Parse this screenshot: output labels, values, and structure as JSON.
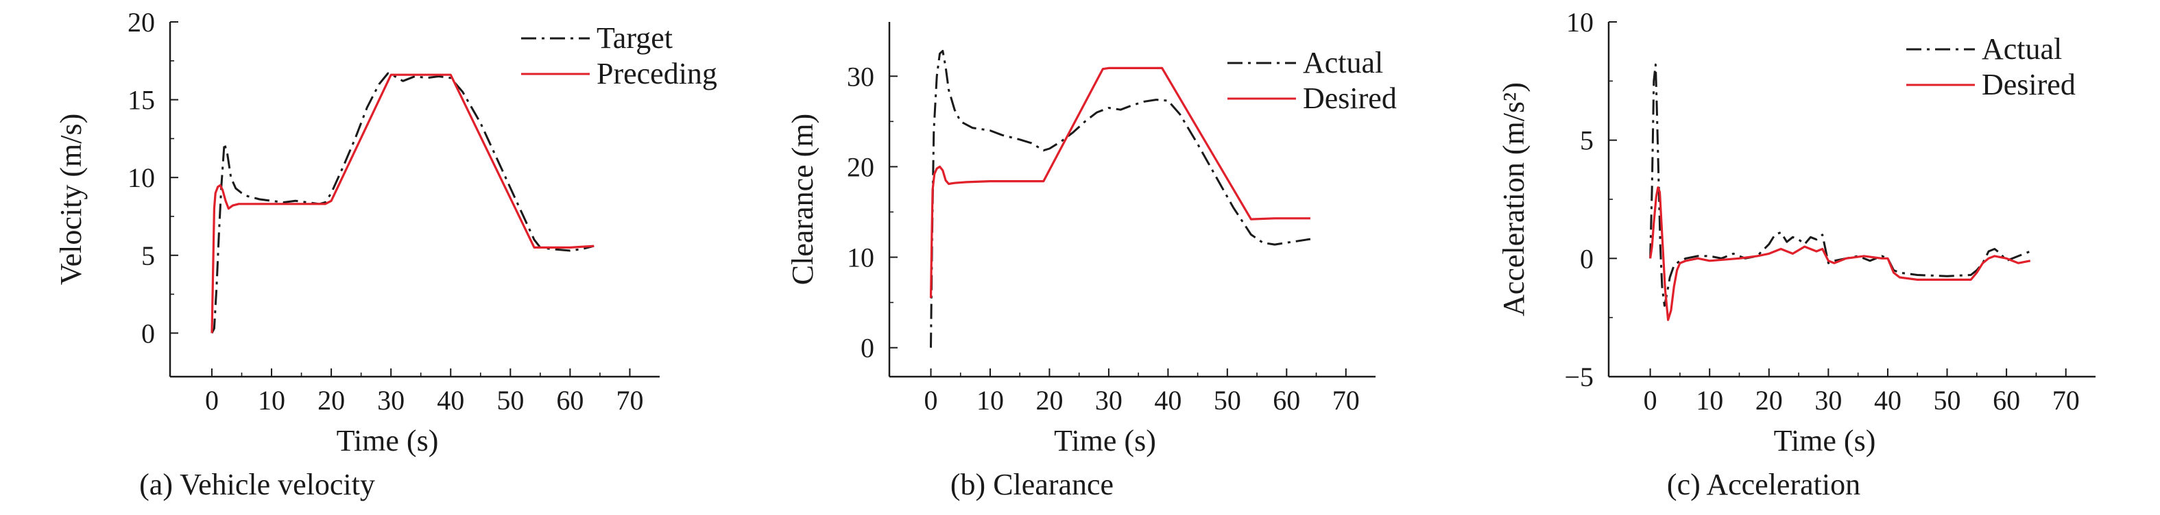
{
  "figure": {
    "colors": {
      "target": "#1a1a1a",
      "actual": "#1a1a1a",
      "preceding": "#e0202a",
      "desired": "#e0202a"
    }
  },
  "chart_data": [
    {
      "type": "line",
      "caption": "(a) Vehicle velocity",
      "xlabel": "Time (s)",
      "ylabel": "Velocity (m/s)",
      "xlim": [
        -7,
        75
      ],
      "ylim": [
        -2.8,
        20
      ],
      "xticks": [
        0,
        10,
        20,
        30,
        40,
        50,
        60,
        70
      ],
      "yticks": [
        0,
        5,
        10,
        15,
        20
      ],
      "xtick_labels": [
        "0",
        "10",
        "20",
        "30",
        "40",
        "50",
        "60",
        "70"
      ],
      "ytick_labels": [
        "0",
        "5",
        "10",
        "15",
        "20"
      ],
      "legend_position": "top-right",
      "series": [
        {
          "name": "Target",
          "style": "dashdot",
          "color": "#1a1a1a",
          "x": [
            0,
            0.4,
            0.8,
            1.2,
            1.6,
            2.1,
            2.6,
            3.2,
            4,
            5,
            6,
            8,
            10,
            12,
            14,
            16,
            18,
            19,
            20,
            22,
            24,
            26,
            28,
            29.5,
            30.2,
            32,
            34,
            36,
            38,
            40,
            42,
            45,
            48,
            51,
            54,
            55,
            57,
            60,
            62,
            64
          ],
          "y": [
            0,
            0.3,
            3,
            6.5,
            9.5,
            12.2,
            11.5,
            10,
            9.3,
            9,
            8.8,
            8.6,
            8.5,
            8.4,
            8.5,
            8.4,
            8.3,
            8.4,
            9,
            10.7,
            12.5,
            14.5,
            16,
            16.7,
            16.6,
            16.2,
            16.5,
            16.4,
            16.5,
            16.4,
            15.5,
            13.5,
            11,
            8.5,
            6,
            5.5,
            5.4,
            5.3,
            5.4,
            5.6
          ]
        },
        {
          "name": "Preceding",
          "style": "solid",
          "color": "#e0202a",
          "x": [
            0,
            0.2,
            0.4,
            0.6,
            1,
            1.4,
            1.8,
            2.3,
            2.8,
            3.5,
            4.5,
            6,
            10,
            15,
            19,
            20,
            30,
            40,
            54,
            55,
            60,
            64
          ],
          "y": [
            0,
            4,
            8,
            9,
            9.4,
            9.5,
            9.2,
            8.5,
            8,
            8.2,
            8.3,
            8.3,
            8.3,
            8.3,
            8.3,
            8.5,
            16.6,
            16.6,
            5.5,
            5.5,
            5.5,
            5.6
          ]
        }
      ]
    },
    {
      "type": "line",
      "caption": "(b) Clearance",
      "xlabel": "Time (s)",
      "ylabel": "Clearance (m)",
      "xlim": [
        -7,
        75
      ],
      "ylim": [
        -3.2,
        36
      ],
      "xticks": [
        0,
        10,
        20,
        30,
        40,
        50,
        60,
        70
      ],
      "yticks": [
        0,
        10,
        20,
        30
      ],
      "xtick_labels": [
        "0",
        "10",
        "20",
        "30",
        "40",
        "50",
        "60",
        "70"
      ],
      "ytick_labels": [
        "0",
        "10",
        "20",
        "30"
      ],
      "legend_position": "top-right",
      "series": [
        {
          "name": "Actual",
          "style": "dashdot",
          "color": "#1a1a1a",
          "x": [
            0,
            0.2,
            0.5,
            1,
            1.5,
            2,
            2.5,
            3,
            4,
            5,
            7,
            10,
            12,
            15,
            17,
            18,
            19,
            20,
            22,
            24,
            26,
            28,
            30,
            32,
            34,
            36,
            38,
            40,
            42,
            45,
            48,
            51,
            54,
            56,
            58,
            60,
            62,
            64
          ],
          "y": [
            0,
            12,
            24,
            30,
            32.5,
            32.8,
            31,
            28.5,
            26.3,
            25,
            24.3,
            24,
            23.5,
            23,
            22.6,
            22.2,
            21.8,
            22,
            22.8,
            23.8,
            25,
            26,
            26.5,
            26.3,
            26.8,
            27.2,
            27.4,
            27.3,
            25.8,
            22.5,
            19,
            15.5,
            12.5,
            11.6,
            11.4,
            11.6,
            11.8,
            12
          ]
        },
        {
          "name": "Desired",
          "style": "solid",
          "color": "#e0202a",
          "x": [
            0,
            0.15,
            0.3,
            0.6,
            1,
            1.5,
            2,
            2.5,
            3,
            4,
            6,
            10,
            15,
            19,
            29,
            30,
            39,
            54,
            58,
            62,
            64
          ],
          "y": [
            5.5,
            12,
            17.5,
            19.2,
            19.8,
            20,
            19.6,
            18.5,
            18.1,
            18.2,
            18.3,
            18.4,
            18.4,
            18.4,
            30.8,
            30.9,
            30.9,
            14.2,
            14.3,
            14.3,
            14.3
          ]
        }
      ]
    },
    {
      "type": "line",
      "caption": "(c) Acceleration",
      "xlabel": "Time (s)",
      "ylabel": "Acceleration (m/s²)",
      "xlim": [
        -7,
        75
      ],
      "ylim": [
        -5,
        10
      ],
      "xticks": [
        0,
        10,
        20,
        30,
        40,
        50,
        60,
        70
      ],
      "yticks": [
        -5,
        0,
        5,
        10
      ],
      "xtick_labels": [
        "0",
        "10",
        "20",
        "30",
        "40",
        "50",
        "60",
        "70"
      ],
      "ytick_labels": [
        "−5",
        "0",
        "5",
        "10"
      ],
      "legend_position": "top-right",
      "series": [
        {
          "name": "Actual",
          "style": "dashdot",
          "color": "#1a1a1a",
          "x": [
            0,
            0.3,
            0.6,
            0.9,
            1.1,
            1.4,
            1.7,
            2,
            2.4,
            2.8,
            3.3,
            4,
            5,
            6,
            8,
            10,
            12,
            14,
            15,
            16,
            18,
            20,
            21,
            22,
            23,
            24,
            25,
            26,
            27,
            28,
            29,
            30,
            31,
            33,
            35,
            37,
            39,
            40,
            41,
            42,
            45,
            50,
            54,
            55,
            56,
            57,
            58,
            59,
            60,
            62,
            64
          ],
          "y": [
            0,
            3,
            7.5,
            8.2,
            6.5,
            3.5,
            0.5,
            -1.2,
            -2,
            -1.5,
            -0.8,
            -0.3,
            -0.1,
            0,
            0.1,
            0.1,
            0,
            0.2,
            0.1,
            0,
            0.1,
            0.6,
            1,
            1.1,
            0.7,
            0.9,
            0.8,
            0.6,
            0.9,
            0.8,
            1,
            -0.2,
            -0.1,
            0,
            0.1,
            -0.1,
            0.1,
            0,
            -0.5,
            -0.6,
            -0.7,
            -0.75,
            -0.7,
            -0.5,
            -0.2,
            0.3,
            0.4,
            0.2,
            -0.1,
            0.1,
            0.3
          ]
        },
        {
          "name": "Desired",
          "style": "solid",
          "color": "#e0202a",
          "x": [
            0,
            0.3,
            0.6,
            1,
            1.3,
            1.6,
            2,
            2.5,
            3,
            3.5,
            4,
            4.5,
            5,
            6,
            8,
            10,
            15,
            18,
            20,
            22,
            24,
            26,
            28,
            29,
            30,
            31,
            33,
            36,
            39,
            40,
            41,
            42,
            45,
            50,
            54,
            55,
            56,
            57,
            58,
            60,
            62,
            64
          ],
          "y": [
            0,
            0.5,
            1.5,
            2.6,
            3,
            2.8,
            1,
            -1.3,
            -2.6,
            -2.2,
            -1.2,
            -0.5,
            -0.2,
            -0.1,
            0,
            -0.1,
            0,
            0.1,
            0.2,
            0.4,
            0.2,
            0.5,
            0.3,
            0.4,
            -0.1,
            -0.2,
            0,
            0.1,
            0,
            0,
            -0.6,
            -0.8,
            -0.9,
            -0.9,
            -0.9,
            -0.6,
            -0.2,
            0,
            0.1,
            0,
            -0.2,
            -0.1
          ]
        }
      ]
    }
  ]
}
